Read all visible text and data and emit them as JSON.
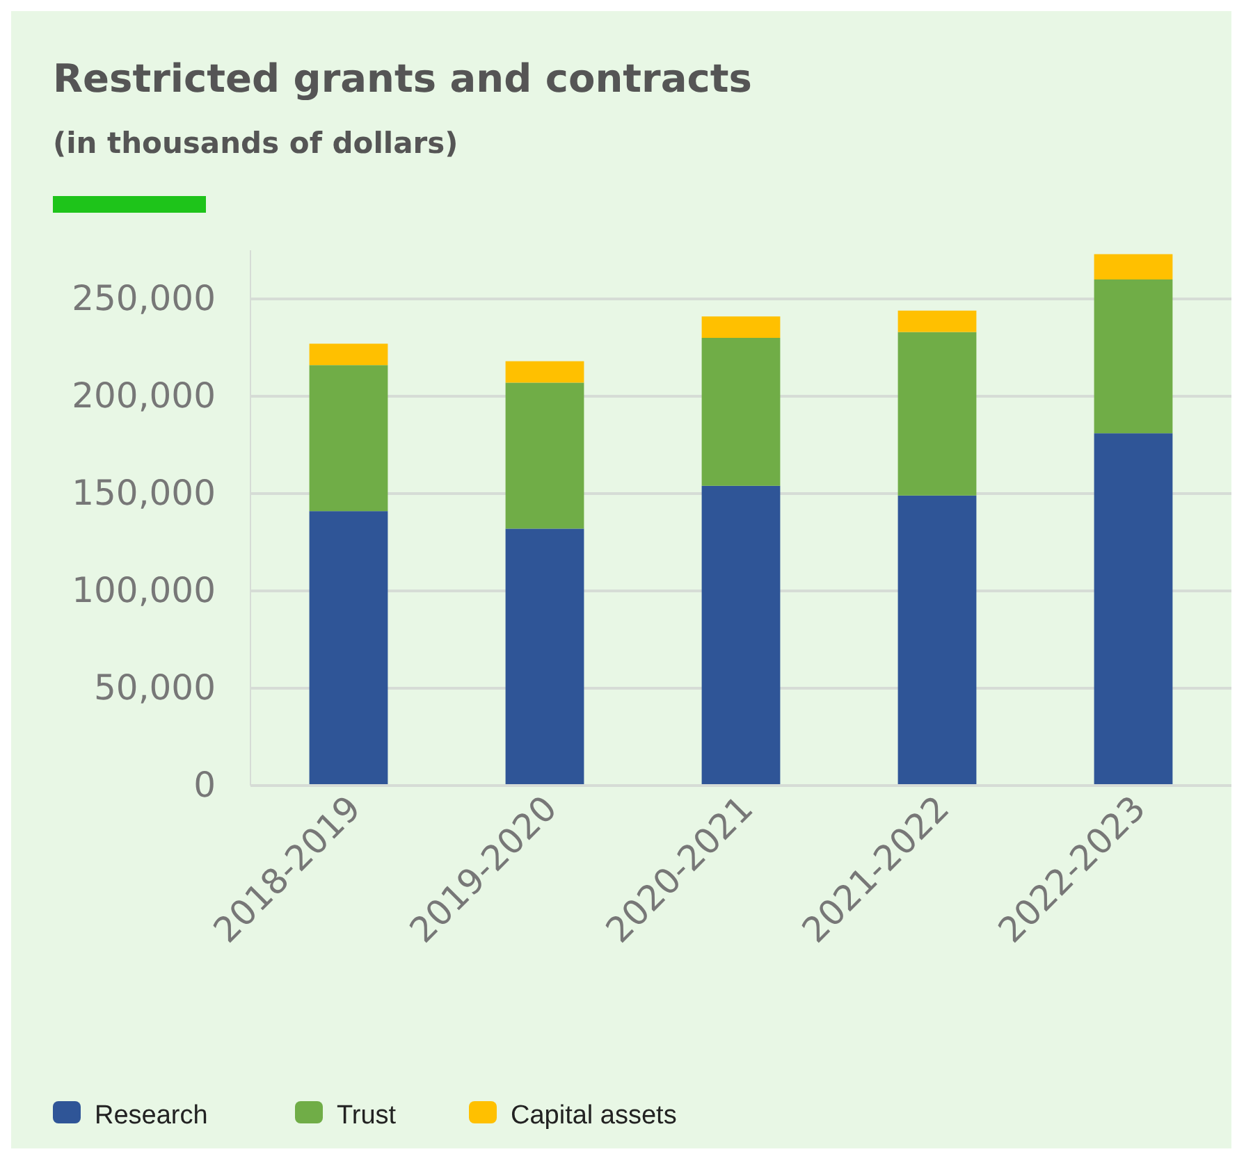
{
  "chart_data": {
    "type": "bar",
    "title": "Restricted grants and contracts",
    "subtitle": "(in thousands of dollars)",
    "categories": [
      "2018-2019",
      "2019-2020",
      "2020-2021",
      "2021-2022",
      "2022-2023"
    ],
    "stacked": true,
    "series": [
      {
        "name": "Research",
        "color": "#2f5597",
        "values": [
          141000,
          132000,
          154000,
          149000,
          181000
        ]
      },
      {
        "name": "Trust",
        "color": "#70ad47",
        "values": [
          75000,
          75000,
          76000,
          84000,
          79000
        ]
      },
      {
        "name": "Capital assets",
        "color": "#ffc000",
        "values": [
          11000,
          11000,
          11000,
          11000,
          13000
        ]
      }
    ],
    "ylim": [
      0,
      275000
    ],
    "yticks": [
      {
        "value": 0,
        "label": "0"
      },
      {
        "value": 50000,
        "label": "50,000"
      },
      {
        "value": 100000,
        "label": "100,000"
      },
      {
        "value": 150000,
        "label": "150,000"
      },
      {
        "value": 200000,
        "label": "200,000"
      },
      {
        "value": 250000,
        "label": "250,000"
      }
    ],
    "grid": "y",
    "legend": "bottom left"
  }
}
